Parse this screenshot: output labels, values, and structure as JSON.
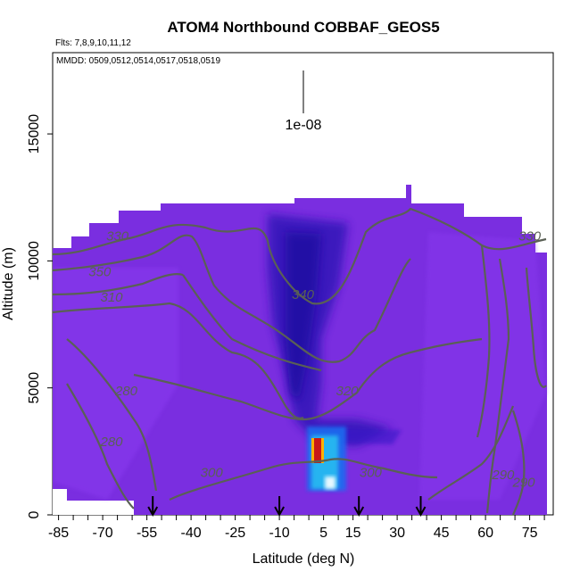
{
  "chart_data": {
    "type": "heatmap",
    "title": "ATOM4 Northbound COBBAF_GEOS5",
    "subtitle": "Flts: 7,8,9,10,11,12",
    "date_note": "MMDD: 0509,0512,0514,0517,0518,0519",
    "xlabel": "Latitude (deg N)",
    "ylabel": "Altitude (m)",
    "xlim": [
      -87,
      83
    ],
    "ylim": [
      0,
      18200
    ],
    "x_ticks_labels": [
      "-85",
      "-70",
      "-55",
      "-40",
      "-25",
      "-10",
      "5",
      "15",
      "30",
      "45",
      "60",
      "75"
    ],
    "x_ticks": [
      -85,
      -70,
      -55,
      -40,
      -25,
      -10,
      5,
      15,
      30,
      45,
      60,
      75
    ],
    "y_ticks": [
      0,
      5000,
      10000,
      15000
    ],
    "y_ticks_labels": [
      "0",
      "5000",
      "10000",
      "15000"
    ],
    "scale_label": "1e-08",
    "background_color": "#7a2ee0",
    "contour_color": "#5a6055",
    "contour_labels": [
      {
        "text": "330",
        "x": -65,
        "y": 10800
      },
      {
        "text": "350",
        "x": -71,
        "y": 9400
      },
      {
        "text": "310",
        "x": -67,
        "y": 8400
      },
      {
        "text": "340",
        "x": -2,
        "y": 8500
      },
      {
        "text": "280",
        "x": -62,
        "y": 4700
      },
      {
        "text": "280",
        "x": -67,
        "y": 2700
      },
      {
        "text": "320",
        "x": 13,
        "y": 4700
      },
      {
        "text": "300",
        "x": -33,
        "y": 1500
      },
      {
        "text": "300",
        "x": 21,
        "y": 1500
      },
      {
        "text": "290",
        "x": 66,
        "y": 1400
      },
      {
        "text": "290",
        "x": 73,
        "y": 1100
      },
      {
        "text": "330",
        "x": 75,
        "y": 10800
      }
    ],
    "flight_markers": [
      -53,
      -10,
      17,
      38
    ],
    "hot_spot": {
      "x": 5,
      "y": 2500,
      "level": "max"
    }
  }
}
